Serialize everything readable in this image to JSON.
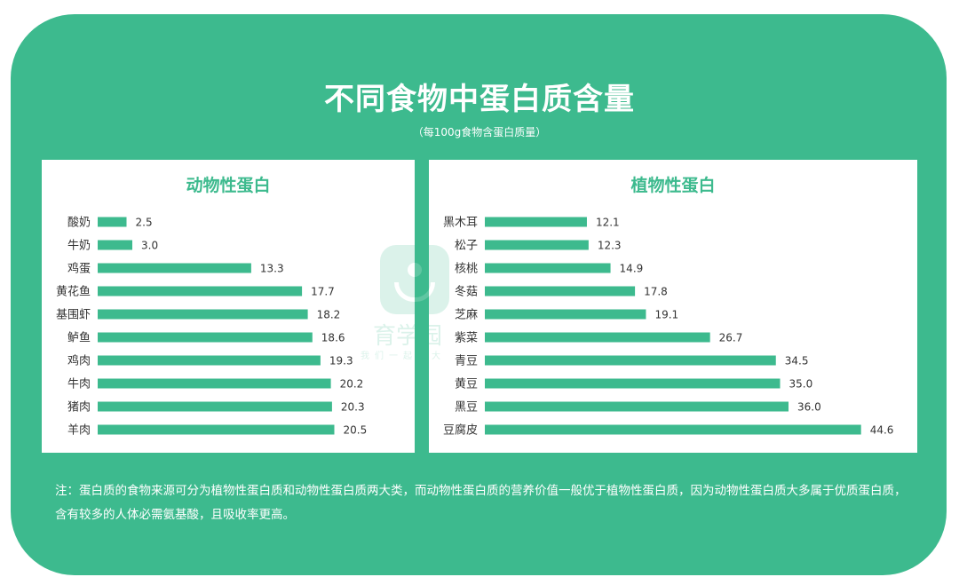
{
  "title": "不同食物中蛋白质含量",
  "subtitle": "（每100g食物含蛋白质量）",
  "note": "注：蛋白质的食物来源可分为植物性蛋白质和动物性蛋白质两大类，而动物性蛋白质的营养价值一般优于植物性蛋白质，因为动物性蛋白质大多属于优质蛋白质，含有较多的人体必需氨基酸，且吸收率更高。",
  "watermark": {
    "name": "育学园",
    "slogan": "我们一起长大"
  },
  "colors": {
    "background": "#3dba8e",
    "bar": "#3dba8e",
    "panel": "#ffffff",
    "text": "#333333"
  },
  "chart_data": [
    {
      "type": "bar",
      "orientation": "horizontal",
      "title": "动物性蛋白",
      "categories": [
        "酸奶",
        "牛奶",
        "鸡蛋",
        "黄花鱼",
        "基围虾",
        "鲈鱼",
        "鸡肉",
        "牛肉",
        "猪肉",
        "羊肉"
      ],
      "values": [
        2.5,
        3.0,
        13.3,
        17.7,
        18.2,
        18.6,
        19.3,
        20.2,
        20.3,
        20.5
      ],
      "value_labels": [
        "2.5",
        "3.0",
        "13.3",
        "17.7",
        "18.2",
        "18.6",
        "19.3",
        "20.2",
        "20.3",
        "20.5"
      ],
      "xlim": [
        0,
        60
      ],
      "grid": false
    },
    {
      "type": "bar",
      "orientation": "horizontal",
      "title": "植物性蛋白",
      "categories": [
        "黑木耳",
        "松子",
        "核桃",
        "冬菇",
        "芝麻",
        "紫菜",
        "青豆",
        "黄豆",
        "黑豆",
        "豆腐皮"
      ],
      "values": [
        12.1,
        12.3,
        14.9,
        17.8,
        19.1,
        26.7,
        34.5,
        35.0,
        36.0,
        44.6
      ],
      "value_labels": [
        "12.1",
        "12.3",
        "14.9",
        "17.8",
        "19.1",
        "26.7",
        "34.5",
        "35.0",
        "36.0",
        "44.6"
      ],
      "xlim": [
        0,
        60
      ],
      "grid": false
    }
  ]
}
